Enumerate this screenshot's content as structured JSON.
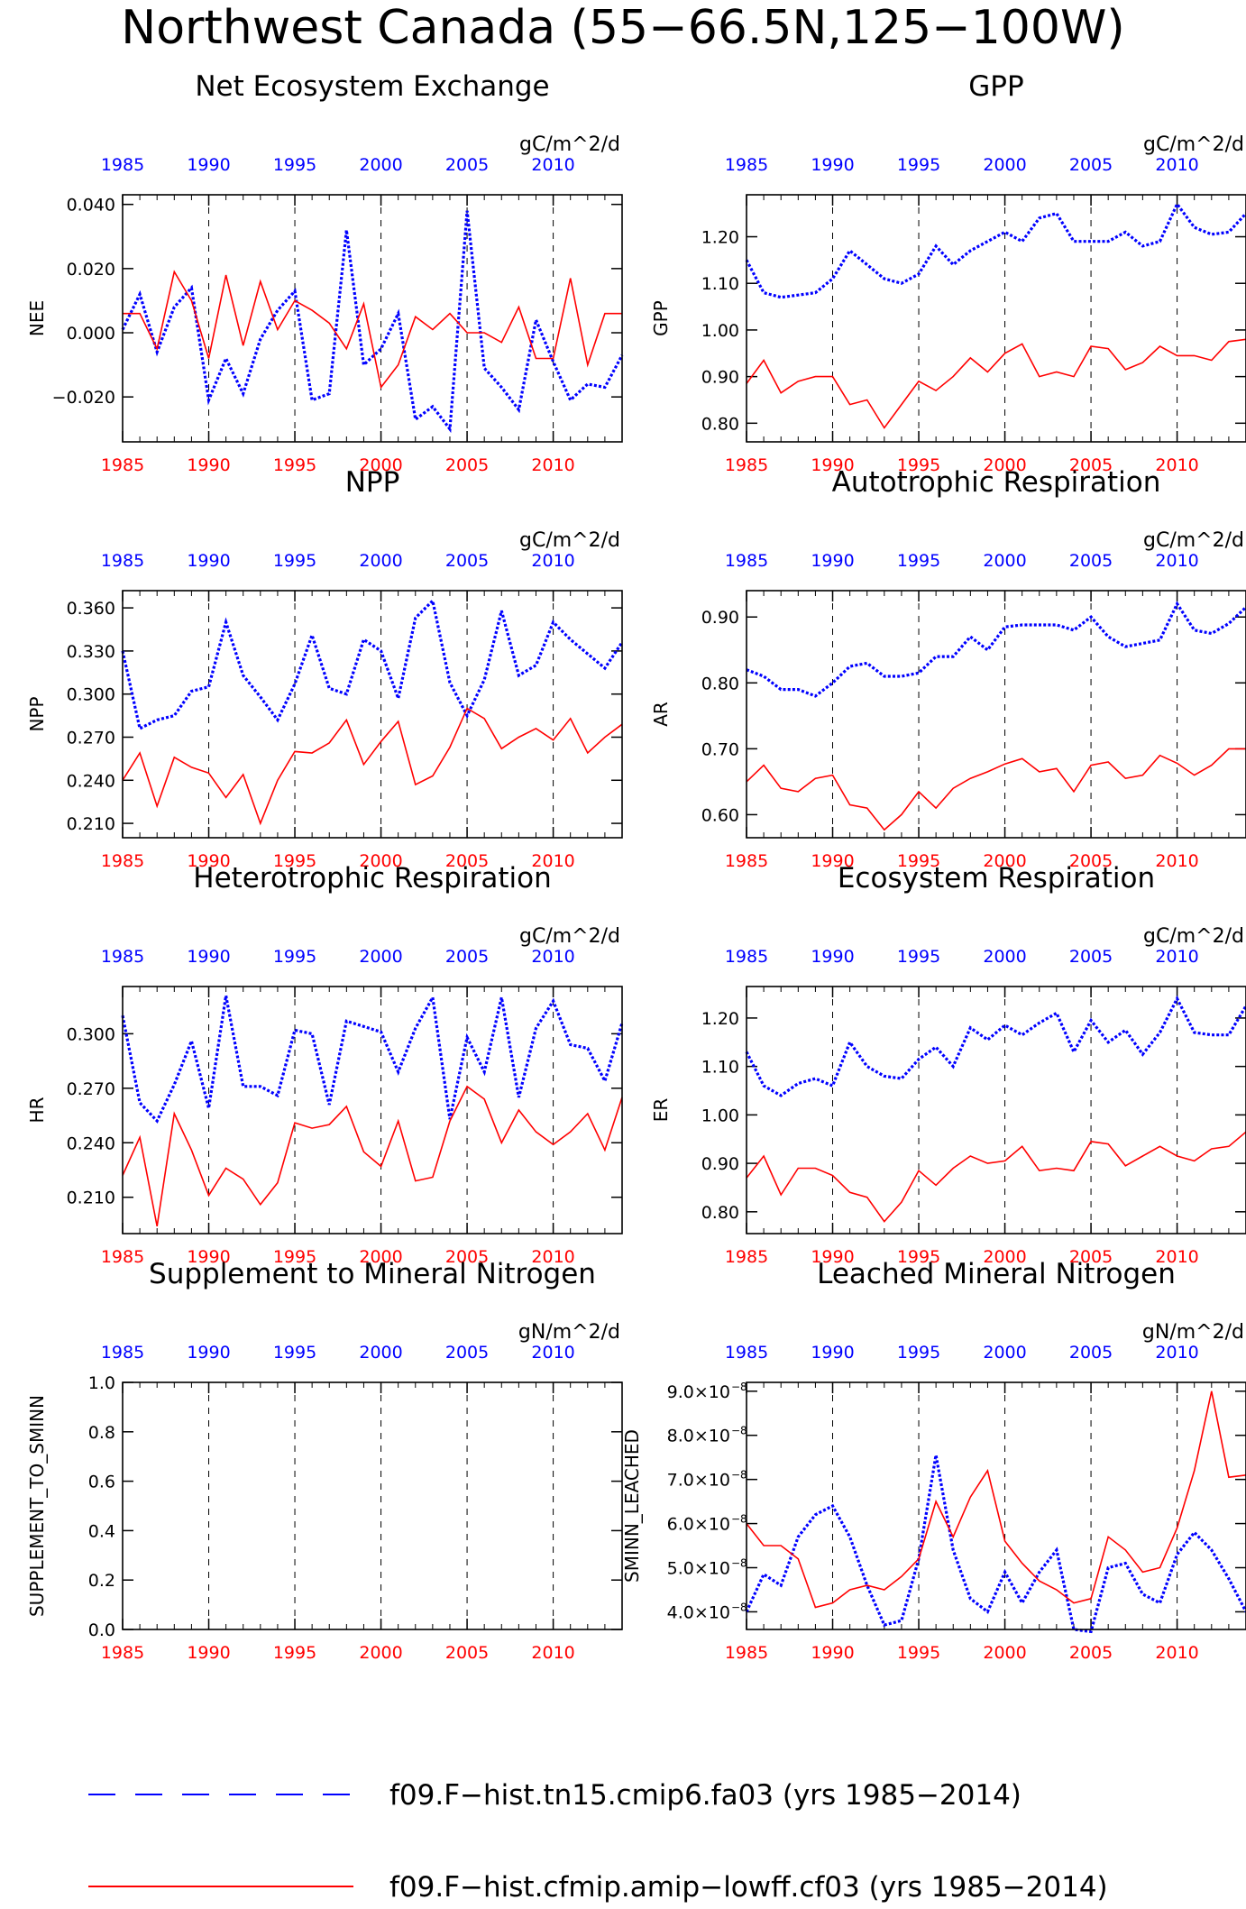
{
  "page": {
    "title": "Northwest Canada (55−66.5N,125−100W)"
  },
  "legend": {
    "items": [
      {
        "label": "f09.F−hist.tn15.cmip6.fa03 (yrs 1985−2014)",
        "color": "#0000ff",
        "style": "dashed"
      },
      {
        "label": "f09.F−hist.cfmip.amip−lowff.cf03 (yrs 1985−2014)",
        "color": "#ff0000",
        "style": "solid"
      }
    ]
  },
  "chart_data": [
    {
      "type": "line",
      "title": "Net Ecosystem Exchange",
      "units": "gC/m^2/d",
      "ylabel": "NEE",
      "x_start": 1985,
      "ylim": [
        -0.034,
        0.043
      ],
      "yticks": [
        -0.02,
        0.0,
        0.02,
        0.04
      ],
      "ytick_labels": [
        "−0.020",
        "0.000",
        "0.020",
        "0.040"
      ],
      "xticks": [
        1985,
        1990,
        1995,
        2000,
        2005,
        2010
      ],
      "series": [
        {
          "color": "#0000ff",
          "style": "dotted",
          "values": [
            0.001,
            0.012,
            -0.006,
            0.008,
            0.014,
            -0.021,
            -0.008,
            -0.019,
            -0.002,
            0.007,
            0.013,
            -0.021,
            -0.019,
            0.032,
            -0.01,
            -0.005,
            0.006,
            -0.027,
            -0.023,
            -0.03,
            0.038,
            -0.011,
            -0.017,
            -0.024,
            0.004,
            -0.009,
            -0.021,
            -0.016,
            -0.017,
            -0.007
          ]
        },
        {
          "color": "#ff0000",
          "style": "solid",
          "values": [
            0.006,
            0.006,
            -0.005,
            0.019,
            0.01,
            -0.008,
            0.018,
            -0.004,
            0.016,
            0.001,
            0.01,
            0.007,
            0.003,
            -0.005,
            0.009,
            -0.017,
            -0.01,
            0.005,
            0.001,
            0.006,
            0.0,
            0.0,
            -0.003,
            0.008,
            -0.008,
            -0.008,
            0.017,
            -0.01,
            0.006,
            0.006
          ]
        }
      ]
    },
    {
      "type": "line",
      "title": "GPP",
      "units": "gC/m^2/d",
      "ylabel": "GPP",
      "x_start": 1985,
      "ylim": [
        0.76,
        1.29
      ],
      "yticks": [
        0.8,
        0.9,
        1.0,
        1.1,
        1.2
      ],
      "ytick_labels": [
        "0.80",
        "0.90",
        "1.00",
        "1.10",
        "1.20"
      ],
      "xticks": [
        1985,
        1990,
        1995,
        2000,
        2005,
        2010
      ],
      "series": [
        {
          "color": "#0000ff",
          "style": "dotted",
          "values": [
            1.15,
            1.08,
            1.07,
            1.075,
            1.08,
            1.11,
            1.17,
            1.14,
            1.11,
            1.1,
            1.12,
            1.18,
            1.14,
            1.17,
            1.19,
            1.21,
            1.19,
            1.24,
            1.25,
            1.19,
            1.19,
            1.19,
            1.21,
            1.18,
            1.19,
            1.27,
            1.22,
            1.205,
            1.21,
            1.25
          ]
        },
        {
          "color": "#ff0000",
          "style": "solid",
          "values": [
            0.885,
            0.935,
            0.865,
            0.89,
            0.9,
            0.9,
            0.84,
            0.85,
            0.79,
            0.84,
            0.89,
            0.87,
            0.9,
            0.94,
            0.91,
            0.95,
            0.97,
            0.9,
            0.91,
            0.9,
            0.965,
            0.96,
            0.915,
            0.93,
            0.965,
            0.945,
            0.945,
            0.935,
            0.975,
            0.98
          ]
        }
      ]
    },
    {
      "type": "line",
      "title": "NPP",
      "units": "gC/m^2/d",
      "ylabel": "NPP",
      "x_start": 1985,
      "ylim": [
        0.2,
        0.372
      ],
      "yticks": [
        0.21,
        0.24,
        0.27,
        0.3,
        0.33,
        0.36
      ],
      "ytick_labels": [
        "0.210",
        "0.240",
        "0.270",
        "0.300",
        "0.330",
        "0.360"
      ],
      "xticks": [
        1985,
        1990,
        1995,
        2000,
        2005,
        2010
      ],
      "series": [
        {
          "color": "#0000ff",
          "style": "dotted",
          "values": [
            0.33,
            0.276,
            0.282,
            0.285,
            0.302,
            0.305,
            0.35,
            0.313,
            0.298,
            0.282,
            0.307,
            0.341,
            0.304,
            0.3,
            0.338,
            0.33,
            0.297,
            0.353,
            0.365,
            0.308,
            0.285,
            0.31,
            0.358,
            0.313,
            0.32,
            0.35,
            0.338,
            0.328,
            0.318,
            0.336
          ]
        },
        {
          "color": "#ff0000",
          "style": "solid",
          "values": [
            0.24,
            0.259,
            0.222,
            0.256,
            0.249,
            0.245,
            0.228,
            0.244,
            0.21,
            0.24,
            0.26,
            0.259,
            0.266,
            0.282,
            0.251,
            0.267,
            0.281,
            0.237,
            0.243,
            0.263,
            0.29,
            0.283,
            0.262,
            0.27,
            0.276,
            0.268,
            0.283,
            0.259,
            0.27,
            0.279
          ]
        }
      ]
    },
    {
      "type": "line",
      "title": "Autotrophic Respiration",
      "units": "gC/m^2/d",
      "ylabel": "AR",
      "x_start": 1985,
      "ylim": [
        0.565,
        0.94
      ],
      "yticks": [
        0.6,
        0.7,
        0.8,
        0.9
      ],
      "ytick_labels": [
        "0.60",
        "0.70",
        "0.80",
        "0.90"
      ],
      "xticks": [
        1985,
        1990,
        1995,
        2000,
        2005,
        2010
      ],
      "series": [
        {
          "color": "#0000ff",
          "style": "dotted",
          "values": [
            0.82,
            0.81,
            0.79,
            0.79,
            0.78,
            0.8,
            0.825,
            0.83,
            0.81,
            0.81,
            0.815,
            0.84,
            0.84,
            0.87,
            0.85,
            0.885,
            0.888,
            0.888,
            0.888,
            0.88,
            0.9,
            0.87,
            0.855,
            0.86,
            0.865,
            0.92,
            0.88,
            0.875,
            0.89,
            0.915
          ]
        },
        {
          "color": "#ff0000",
          "style": "solid",
          "values": [
            0.65,
            0.675,
            0.64,
            0.635,
            0.655,
            0.66,
            0.615,
            0.61,
            0.577,
            0.6,
            0.635,
            0.61,
            0.64,
            0.655,
            0.665,
            0.677,
            0.685,
            0.665,
            0.67,
            0.635,
            0.675,
            0.68,
            0.655,
            0.66,
            0.69,
            0.678,
            0.66,
            0.675,
            0.7,
            0.7
          ]
        }
      ]
    },
    {
      "type": "line",
      "title": "Heterotrophic Respiration",
      "units": "gC/m^2/d",
      "ylabel": "HR",
      "x_start": 1985,
      "ylim": [
        0.19,
        0.326
      ],
      "yticks": [
        0.21,
        0.24,
        0.27,
        0.3
      ],
      "ytick_labels": [
        "0.210",
        "0.240",
        "0.270",
        "0.300"
      ],
      "xticks": [
        1985,
        1990,
        1995,
        2000,
        2005,
        2010
      ],
      "series": [
        {
          "color": "#0000ff",
          "style": "dotted",
          "values": [
            0.31,
            0.262,
            0.252,
            0.272,
            0.296,
            0.259,
            0.321,
            0.271,
            0.271,
            0.266,
            0.302,
            0.3,
            0.261,
            0.307,
            0.304,
            0.301,
            0.279,
            0.303,
            0.32,
            0.253,
            0.298,
            0.279,
            0.32,
            0.265,
            0.303,
            0.318,
            0.294,
            0.292,
            0.274,
            0.306
          ]
        },
        {
          "color": "#ff0000",
          "style": "solid",
          "values": [
            0.222,
            0.243,
            0.194,
            0.256,
            0.236,
            0.211,
            0.226,
            0.22,
            0.206,
            0.218,
            0.251,
            0.248,
            0.25,
            0.26,
            0.235,
            0.227,
            0.252,
            0.219,
            0.221,
            0.252,
            0.271,
            0.264,
            0.24,
            0.258,
            0.246,
            0.239,
            0.246,
            0.256,
            0.236,
            0.265
          ]
        }
      ]
    },
    {
      "type": "line",
      "title": "Ecosystem Respiration",
      "units": "gC/m^2/d",
      "ylabel": "ER",
      "x_start": 1985,
      "ylim": [
        0.755,
        1.265
      ],
      "yticks": [
        0.8,
        0.9,
        1.0,
        1.1,
        1.2
      ],
      "ytick_labels": [
        "0.80",
        "0.90",
        "1.00",
        "1.10",
        "1.20"
      ],
      "xticks": [
        1985,
        1990,
        1995,
        2000,
        2005,
        2010
      ],
      "series": [
        {
          "color": "#0000ff",
          "style": "dotted",
          "values": [
            1.13,
            1.06,
            1.04,
            1.065,
            1.075,
            1.06,
            1.15,
            1.1,
            1.08,
            1.075,
            1.115,
            1.14,
            1.1,
            1.18,
            1.155,
            1.185,
            1.165,
            1.19,
            1.21,
            1.13,
            1.195,
            1.15,
            1.175,
            1.125,
            1.17,
            1.24,
            1.17,
            1.165,
            1.165,
            1.225
          ]
        },
        {
          "color": "#ff0000",
          "style": "solid",
          "values": [
            0.87,
            0.915,
            0.835,
            0.89,
            0.89,
            0.875,
            0.84,
            0.83,
            0.78,
            0.82,
            0.885,
            0.855,
            0.89,
            0.915,
            0.9,
            0.905,
            0.935,
            0.885,
            0.89,
            0.885,
            0.945,
            0.94,
            0.895,
            0.915,
            0.935,
            0.915,
            0.905,
            0.93,
            0.935,
            0.965
          ]
        }
      ]
    },
    {
      "type": "line",
      "title": "Supplement to Mineral Nitrogen",
      "units": "gN/m^2/d",
      "ylabel": "SUPPLEMENT_TO_SMINN",
      "x_start": 1985,
      "ylim": [
        0.0,
        1.0
      ],
      "yticks": [
        0.0,
        0.2,
        0.4,
        0.6,
        0.8,
        1.0
      ],
      "ytick_labels": [
        "0.0",
        "0.2",
        "0.4",
        "0.6",
        "0.8",
        "1.0"
      ],
      "xticks": [
        1985,
        1990,
        1995,
        2000,
        2005,
        2010
      ],
      "series": []
    },
    {
      "type": "line",
      "title": "Leached Mineral Nitrogen",
      "units": "gN/m^2/d",
      "ylabel": "SMINN_LEACHED",
      "x_start": 1985,
      "y_exponent": -8,
      "ylim": [
        3.6,
        9.2
      ],
      "yticks": [
        4.0,
        5.0,
        6.0,
        7.0,
        8.0,
        9.0
      ],
      "ytick_labels": [
        "4.0×10",
        "5.0×10",
        "6.0×10",
        "7.0×10",
        "8.0×10",
        "9.0×10"
      ],
      "ytick_exponent_label": "−8",
      "xticks": [
        1985,
        1990,
        1995,
        2000,
        2005,
        2010
      ],
      "series": [
        {
          "color": "#0000ff",
          "style": "dotted",
          "values": [
            4.0,
            4.85,
            4.6,
            5.7,
            6.2,
            6.4,
            5.7,
            4.6,
            3.7,
            3.8,
            5.2,
            7.55,
            5.4,
            4.3,
            4.0,
            4.9,
            4.2,
            4.9,
            5.4,
            3.6,
            3.55,
            5.0,
            5.1,
            4.4,
            4.2,
            5.3,
            5.8,
            5.4,
            4.75,
            4.0
          ]
        },
        {
          "color": "#ff0000",
          "style": "solid",
          "values": [
            6.0,
            5.5,
            5.5,
            5.2,
            4.1,
            4.2,
            4.5,
            4.6,
            4.5,
            4.8,
            5.2,
            6.5,
            5.7,
            6.6,
            7.2,
            5.6,
            5.1,
            4.7,
            4.5,
            4.2,
            4.3,
            5.7,
            5.4,
            4.9,
            5.0,
            5.9,
            7.2,
            9.0,
            7.05,
            7.1
          ]
        }
      ]
    }
  ]
}
